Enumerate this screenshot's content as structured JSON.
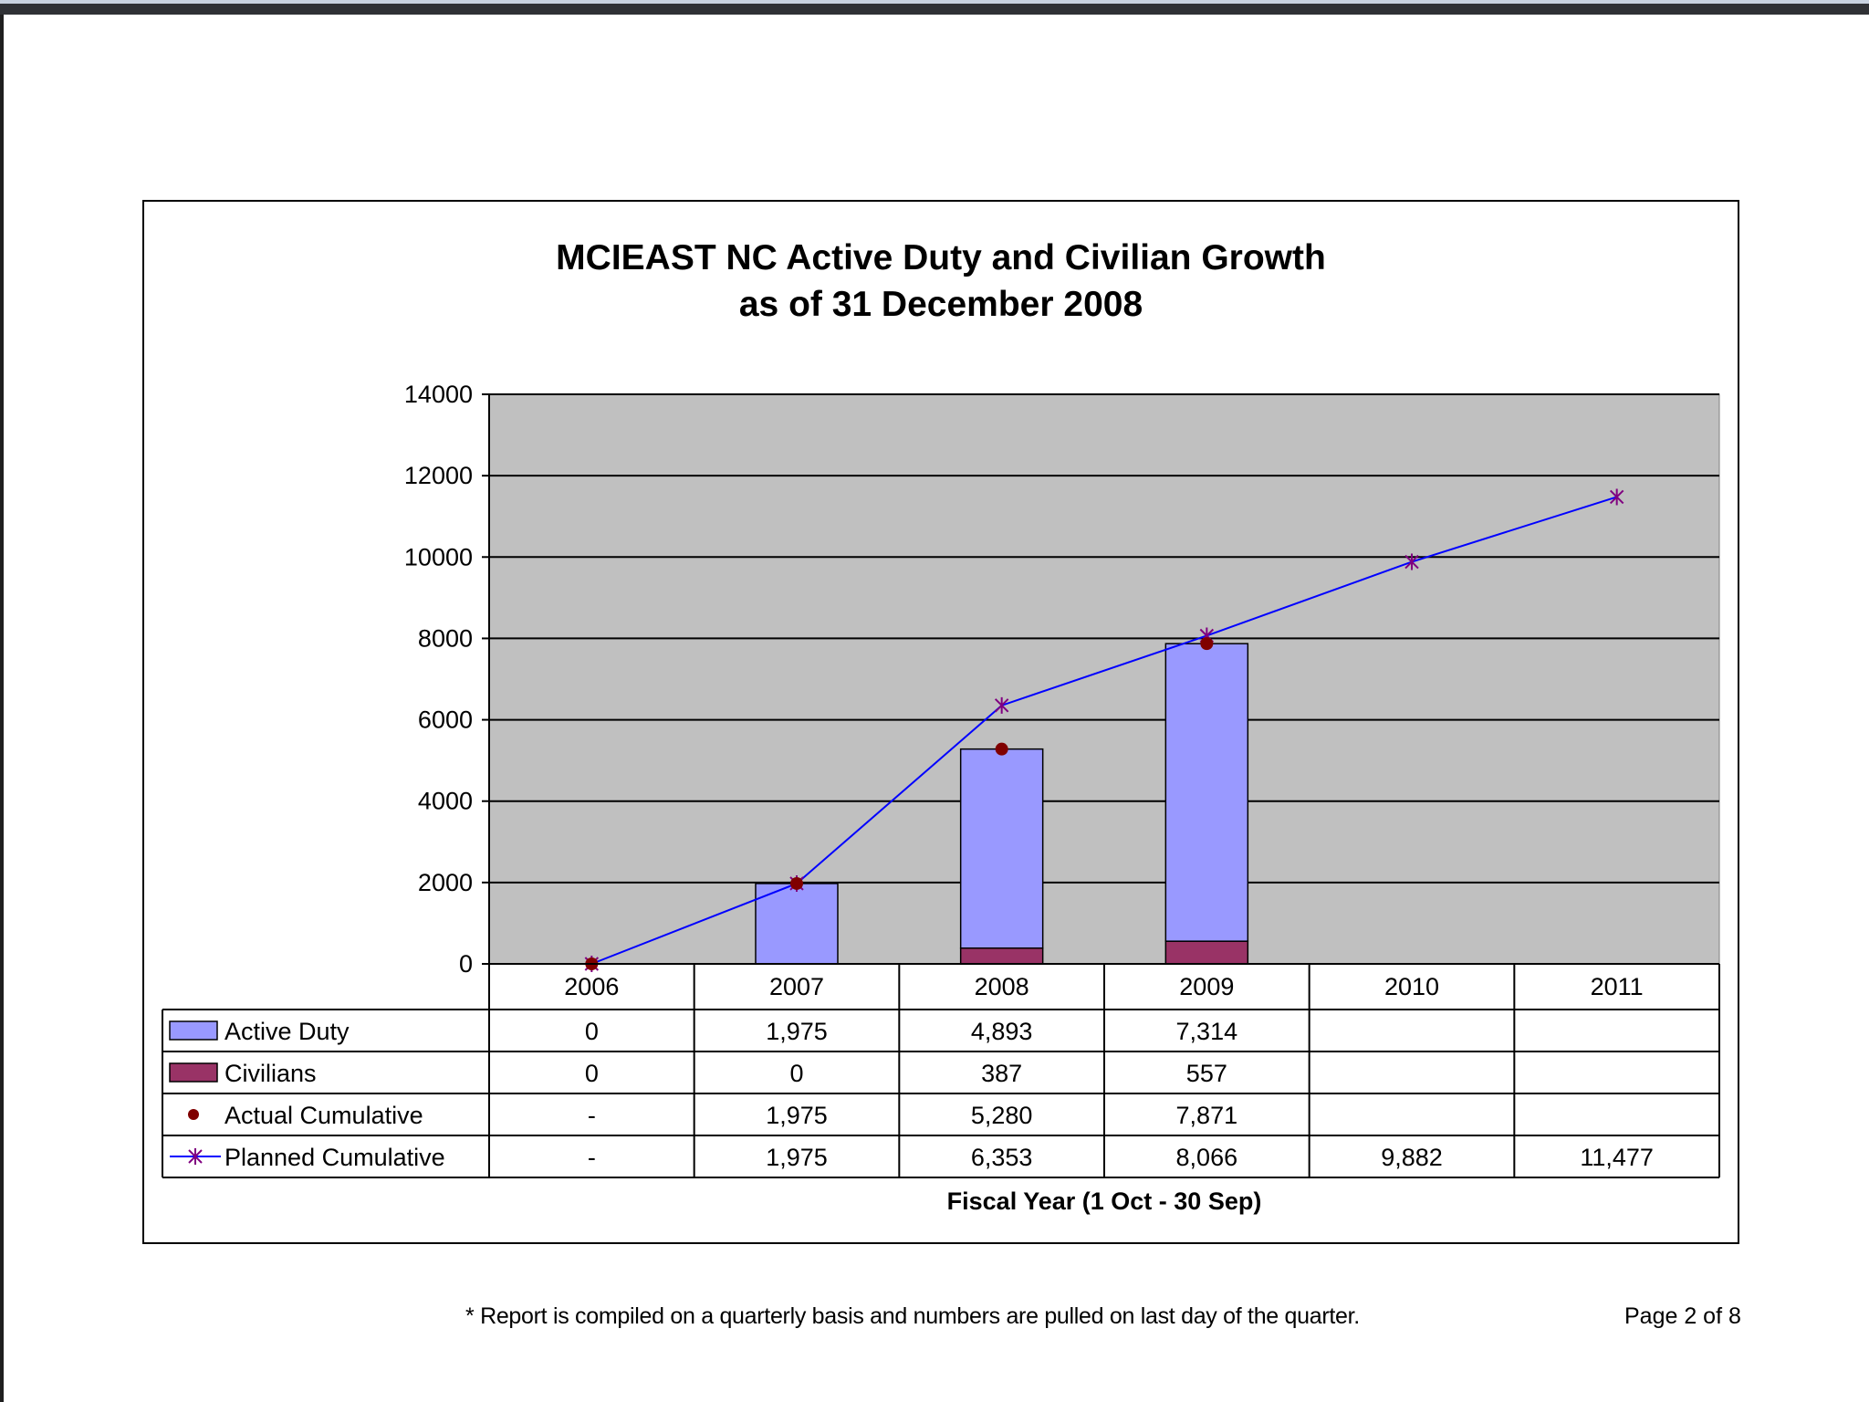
{
  "chart_data": {
    "type": "bar",
    "title": [
      "MCIEAST NC Active Duty and Civilian Growth",
      "as of 31 December 2008"
    ],
    "xlabel": "Fiscal Year (1 Oct - 30 Sep)",
    "ylabel": "",
    "ylim": [
      0,
      14000
    ],
    "yticks": [
      "0",
      "2000",
      "4000",
      "6000",
      "8000",
      "10000",
      "12000",
      "14000"
    ],
    "grid": true,
    "categories": [
      "2006",
      "2007",
      "2008",
      "2009",
      "2010",
      "2011"
    ],
    "stacked_bars": [
      {
        "name": "Active Duty",
        "values": [
          0,
          1975,
          4893,
          7314,
          null,
          null
        ],
        "color": "#9999ff"
      },
      {
        "name": "Civilians",
        "values": [
          0,
          0,
          387,
          557,
          null,
          null
        ],
        "color": "#993366"
      }
    ],
    "points": {
      "name": "Actual Cumulative",
      "values": [
        0,
        1975,
        5280,
        7871,
        null,
        null
      ],
      "color": "#800000"
    },
    "line": {
      "name": "Planned Cumulative",
      "values": [
        0,
        1975,
        6353,
        8066,
        9882,
        11477
      ],
      "color": "#0000ff",
      "marker_color": "#800080"
    },
    "data_table": {
      "rows": [
        {
          "label": "Active Duty",
          "key": "active",
          "cells": [
            "0",
            "1,975",
            "4,893",
            "7,314",
            "",
            ""
          ]
        },
        {
          "label": "Civilians",
          "key": "civ",
          "cells": [
            "0",
            "0",
            "387",
            "557",
            "",
            ""
          ]
        },
        {
          "label": "Actual Cumulative",
          "key": "actual",
          "cells": [
            "-",
            "1,975",
            "5,280",
            "7,871",
            "",
            ""
          ]
        },
        {
          "label": "Planned Cumulative",
          "key": "planned",
          "cells": [
            "-",
            "1,975",
            "6,353",
            "8,066",
            "9,882",
            "11,477"
          ]
        }
      ]
    },
    "plot_background": "#c0c0c0"
  },
  "footer": {
    "note": "* Report is compiled on a quarterly basis and numbers are pulled on last day of the quarter.",
    "page": "Page 2 of 8"
  }
}
